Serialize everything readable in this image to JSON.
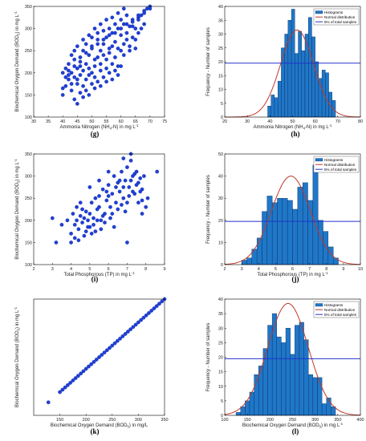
{
  "figure": {
    "colors": {
      "scatter": "#1f3fd6",
      "bar_fill": "#1f77c8",
      "bar_edge": "#0b2a5c",
      "normal_curve": "#c0392b",
      "threshold_line": "#2233cc"
    }
  },
  "chart_data": [
    {
      "id": "g",
      "type": "scatter",
      "caption": "(g)",
      "xlabel": "Ammonia Nitrogen (NH",
      "xlabel_sub": "4",
      "xlabel_post": "-N) in mg L",
      "xlabel_sup": "-1",
      "ylabel": "Biochemical Oxygen Demand (BOD",
      "ylabel_sub": "5",
      "ylabel_post": ") in mg L",
      "ylabel_sup": "-1",
      "xlim": [
        30,
        75
      ],
      "ylim": [
        100,
        350
      ],
      "xticks": [
        30,
        35,
        40,
        45,
        50,
        55,
        60,
        65,
        70,
        75
      ],
      "yticks": [
        100,
        150,
        200,
        250,
        300,
        350
      ],
      "points": [
        [
          40,
          165
        ],
        [
          41,
          190
        ],
        [
          42,
          205
        ],
        [
          43,
          175
        ],
        [
          44,
          230
        ],
        [
          45,
          210
        ],
        [
          46,
          195
        ],
        [
          47,
          250
        ],
        [
          48,
          220
        ],
        [
          49,
          240
        ],
        [
          50,
          260
        ],
        [
          51,
          230
        ],
        [
          52,
          275
        ],
        [
          53,
          250
        ],
        [
          54,
          265
        ],
        [
          55,
          280
        ],
        [
          56,
          255
        ],
        [
          57,
          290
        ],
        [
          58,
          270
        ],
        [
          59,
          300
        ],
        [
          60,
          285
        ],
        [
          61,
          310
        ],
        [
          62,
          290
        ],
        [
          63,
          305
        ],
        [
          64,
          320
        ],
        [
          65,
          300
        ],
        [
          66,
          325
        ],
        [
          67,
          330
        ],
        [
          68,
          340
        ],
        [
          69,
          345
        ],
        [
          70,
          350
        ],
        [
          40,
          150
        ],
        [
          41,
          170
        ],
        [
          42,
          185
        ],
        [
          43,
          200
        ],
        [
          44,
          190
        ],
        [
          45,
          175
        ],
        [
          46,
          215
        ],
        [
          47,
          205
        ],
        [
          48,
          185
        ],
        [
          49,
          210
        ],
        [
          50,
          200
        ],
        [
          51,
          215
        ],
        [
          52,
          235
        ],
        [
          53,
          220
        ],
        [
          54,
          240
        ],
        [
          55,
          230
        ],
        [
          56,
          245
        ],
        [
          57,
          260
        ],
        [
          58,
          235
        ],
        [
          59,
          255
        ],
        [
          60,
          250
        ],
        [
          61,
          265
        ],
        [
          62,
          275
        ],
        [
          63,
          260
        ],
        [
          64,
          280
        ],
        [
          65,
          275
        ],
        [
          66,
          290
        ],
        [
          67,
          300
        ],
        [
          68,
          310
        ],
        [
          42,
          220
        ],
        [
          44,
          250
        ],
        [
          46,
          235
        ],
        [
          48,
          265
        ],
        [
          50,
          280
        ],
        [
          52,
          290
        ],
        [
          54,
          295
        ],
        [
          56,
          300
        ],
        [
          58,
          310
        ],
        [
          60,
          320
        ],
        [
          62,
          330
        ],
        [
          64,
          305
        ],
        [
          66,
          320
        ],
        [
          43,
          160
        ],
        [
          45,
          185
        ],
        [
          47,
          170
        ],
        [
          49,
          195
        ],
        [
          51,
          190
        ],
        [
          53,
          205
        ],
        [
          55,
          210
        ],
        [
          57,
          220
        ],
        [
          59,
          215
        ],
        [
          61,
          240
        ],
        [
          63,
          250
        ],
        [
          65,
          255
        ],
        [
          44,
          140
        ],
        [
          46,
          155
        ],
        [
          48,
          160
        ],
        [
          50,
          175
        ],
        [
          52,
          180
        ],
        [
          54,
          190
        ],
        [
          56,
          200
        ],
        [
          58,
          205
        ],
        [
          60,
          215
        ],
        [
          45,
          130
        ],
        [
          47,
          145
        ],
        [
          49,
          150
        ],
        [
          51,
          165
        ],
        [
          53,
          170
        ],
        [
          55,
          180
        ],
        [
          57,
          185
        ],
        [
          59,
          195
        ],
        [
          41,
          210
        ],
        [
          43,
          240
        ],
        [
          45,
          260
        ],
        [
          47,
          275
        ],
        [
          49,
          285
        ],
        [
          51,
          300
        ],
        [
          53,
          310
        ],
        [
          55,
          320
        ],
        [
          57,
          325
        ],
        [
          59,
          335
        ],
        [
          61,
          345
        ],
        [
          40,
          200
        ],
        [
          42,
          195
        ],
        [
          44,
          215
        ],
        [
          46,
          225
        ],
        [
          48,
          245
        ],
        [
          50,
          255
        ],
        [
          52,
          265
        ],
        [
          54,
          275
        ],
        [
          56,
          285
        ],
        [
          58,
          290
        ],
        [
          60,
          300
        ],
        [
          62,
          310
        ],
        [
          64,
          315
        ],
        [
          66,
          330
        ],
        [
          68,
          335
        ],
        [
          70,
          345
        ]
      ]
    },
    {
      "id": "h",
      "type": "histogram",
      "caption": "(h)",
      "xlabel": "Ammonia Nitrogen (NH",
      "xlabel_sub": "4",
      "xlabel_post": "-N) in mg L",
      "xlabel_sup": "-1",
      "ylabel": "Frequency - Number of samples",
      "xlim": [
        20,
        80
      ],
      "ylim": [
        0,
        40
      ],
      "xticks": [
        20,
        30,
        40,
        50,
        60,
        70,
        80
      ],
      "yticks": [
        0,
        5,
        10,
        15,
        20,
        25,
        30,
        35,
        40
      ],
      "bin_edges": [
        39,
        40.5,
        42,
        43.5,
        45,
        46.5,
        48,
        49.5,
        51,
        52.5,
        54,
        55.5,
        57,
        58.5,
        60,
        61.5,
        63,
        64.5,
        66,
        67.5,
        69
      ],
      "counts": [
        4,
        8,
        7,
        13,
        25,
        30,
        35,
        39,
        23,
        31,
        24,
        30,
        36,
        29,
        20,
        14,
        17,
        16,
        9,
        6
      ],
      "normal": {
        "mean": 52,
        "sd": 7.3,
        "peak": 31.5
      },
      "threshold": 19.5,
      "legend": [
        "Histograms",
        "Normal distribution",
        "5% of total samples"
      ]
    },
    {
      "id": "i",
      "type": "scatter",
      "caption": "(i)",
      "xlabel": "Total Phosphorous (TP) in mg L",
      "xlabel_sup": "-1",
      "ylabel": "Biochemical Oxygen Demand (BOD",
      "ylabel_sub": "5",
      "ylabel_post": ") in mg L",
      "ylabel_sup": "-1",
      "xlim": [
        2,
        9
      ],
      "ylim": [
        100,
        350
      ],
      "xticks": [
        2,
        3,
        4,
        5,
        6,
        7,
        8,
        9
      ],
      "yticks": [
        100,
        150,
        200,
        250,
        300,
        350
      ],
      "points": [
        [
          3.0,
          205
        ],
        [
          3.2,
          150
        ],
        [
          3.8,
          200
        ],
        [
          4.0,
          170
        ],
        [
          4.1,
          215
        ],
        [
          4.2,
          190
        ],
        [
          4.3,
          230
        ],
        [
          4.4,
          180
        ],
        [
          4.5,
          210
        ],
        [
          4.6,
          195
        ],
        [
          4.7,
          165
        ],
        [
          4.8,
          220
        ],
        [
          4.9,
          200
        ],
        [
          5.0,
          185
        ],
        [
          5.1,
          240
        ],
        [
          5.2,
          205
        ],
        [
          5.3,
          175
        ],
        [
          5.4,
          225
        ],
        [
          5.5,
          255
        ],
        [
          5.6,
          200
        ],
        [
          5.7,
          270
        ],
        [
          5.8,
          215
        ],
        [
          5.9,
          245
        ],
        [
          6.0,
          280
        ],
        [
          6.1,
          230
        ],
        [
          6.2,
          260
        ],
        [
          6.3,
          300
        ],
        [
          6.4,
          240
        ],
        [
          6.5,
          285
        ],
        [
          6.6,
          265
        ],
        [
          6.7,
          310
        ],
        [
          6.8,
          250
        ],
        [
          6.9,
          290
        ],
        [
          7.0,
          320
        ],
        [
          7.1,
          275
        ],
        [
          7.2,
          335
        ],
        [
          7.3,
          300
        ],
        [
          7.4,
          260
        ],
        [
          7.5,
          280
        ],
        [
          7.6,
          240
        ],
        [
          7.7,
          295
        ],
        [
          7.8,
          270
        ],
        [
          7.9,
          300
        ],
        [
          8.0,
          230
        ],
        [
          8.1,
          250
        ],
        [
          8.6,
          310
        ],
        [
          4.2,
          160
        ],
        [
          4.5,
          240
        ],
        [
          4.8,
          175
        ],
        [
          5.0,
          215
        ],
        [
          5.2,
          190
        ],
        [
          5.5,
          230
        ],
        [
          5.8,
          195
        ],
        [
          6.0,
          255
        ],
        [
          6.2,
          215
        ],
        [
          6.5,
          225
        ],
        [
          6.8,
          275
        ],
        [
          7.0,
          240
        ],
        [
          7.2,
          290
        ],
        [
          7.5,
          310
        ],
        [
          7.8,
          245
        ],
        [
          4.3,
          200
        ],
        [
          4.6,
          225
        ],
        [
          4.9,
          185
        ],
        [
          5.3,
          250
        ],
        [
          5.6,
          180
        ],
        [
          5.9,
          265
        ],
        [
          6.1,
          205
        ],
        [
          6.4,
          275
        ],
        [
          6.7,
          235
        ],
        [
          7.1,
          255
        ],
        [
          7.4,
          305
        ],
        [
          7.7,
          265
        ],
        [
          4.4,
          155
        ],
        [
          4.7,
          205
        ],
        [
          5.1,
          170
        ],
        [
          5.4,
          200
        ],
        [
          5.7,
          210
        ],
        [
          6.3,
          185
        ],
        [
          6.6,
          290
        ],
        [
          6.9,
          220
        ],
        [
          7.3,
          265
        ],
        [
          7.6,
          285
        ],
        [
          3.5,
          190
        ],
        [
          4.0,
          150
        ],
        [
          7.0,
          150
        ],
        [
          7.8,
          215
        ],
        [
          5.0,
          275
        ],
        [
          5.5,
          290
        ],
        [
          6.0,
          310
        ],
        [
          6.8,
          340
        ],
        [
          7.2,
          350
        ]
      ]
    },
    {
      "id": "j",
      "type": "histogram",
      "caption": "(j)",
      "xlabel": "Total Phosphorous (TP) in mg L",
      "xlabel_sup": "-1",
      "ylabel": "Frequency - Number of samples",
      "xlim": [
        2,
        10
      ],
      "ylim": [
        0,
        50
      ],
      "xticks": [
        2,
        3,
        4,
        5,
        6,
        7,
        8,
        9,
        10
      ],
      "yticks": [
        0,
        10,
        20,
        30,
        40,
        50
      ],
      "bin_edges": [
        3.0,
        3.3,
        3.6,
        3.9,
        4.2,
        4.5,
        4.8,
        5.1,
        5.4,
        5.7,
        6.0,
        6.3,
        6.6,
        6.9,
        7.2,
        7.5,
        7.8,
        8.1,
        8.4,
        8.7
      ],
      "counts": [
        2,
        3,
        7,
        12,
        24,
        31,
        28,
        30,
        30,
        29,
        25,
        35,
        37,
        29,
        45,
        20,
        15,
        8,
        3
      ],
      "normal": {
        "mean": 5.9,
        "sd": 1.15,
        "peak": 40
      },
      "threshold": 19.5,
      "legend": [
        "Histograms",
        "Normal distribution",
        "5% of total samples"
      ]
    },
    {
      "id": "k",
      "type": "scatter",
      "caption": "(k)",
      "xlabel": "Biochemical Oxygen Demand (BOD",
      "xlabel_sub": "5",
      "xlabel_post": ") in mg/L",
      "ylabel": "Biochemical Oxygen Demand (BOD",
      "ylabel_sub": "5",
      "ylabel_post": ") in mg L",
      "ylabel_sup": "-1",
      "xlim": [
        100,
        350
      ],
      "ylim": [
        100,
        350
      ],
      "xticks": [
        150,
        200,
        250,
        300,
        350
      ],
      "yticks": [],
      "points": [
        [
          128,
          128
        ],
        [
          150,
          150
        ],
        [
          155,
          155
        ],
        [
          160,
          160
        ],
        [
          165,
          165
        ],
        [
          170,
          170
        ],
        [
          175,
          175
        ],
        [
          180,
          180
        ],
        [
          185,
          185
        ],
        [
          190,
          190
        ],
        [
          195,
          195
        ],
        [
          200,
          200
        ],
        [
          205,
          205
        ],
        [
          210,
          210
        ],
        [
          215,
          215
        ],
        [
          220,
          220
        ],
        [
          225,
          225
        ],
        [
          230,
          230
        ],
        [
          235,
          235
        ],
        [
          240,
          240
        ],
        [
          245,
          245
        ],
        [
          250,
          250
        ],
        [
          255,
          255
        ],
        [
          260,
          260
        ],
        [
          265,
          265
        ],
        [
          270,
          270
        ],
        [
          275,
          275
        ],
        [
          280,
          280
        ],
        [
          285,
          285
        ],
        [
          290,
          290
        ],
        [
          295,
          295
        ],
        [
          300,
          300
        ],
        [
          305,
          305
        ],
        [
          310,
          310
        ],
        [
          315,
          315
        ],
        [
          320,
          320
        ],
        [
          325,
          325
        ],
        [
          330,
          330
        ],
        [
          335,
          335
        ],
        [
          340,
          340
        ],
        [
          345,
          345
        ],
        [
          350,
          350
        ]
      ]
    },
    {
      "id": "l",
      "type": "histogram",
      "caption": "(l)",
      "xlabel": "Biochemical Oxygen Demand (BOD",
      "xlabel_sub": "5",
      "xlabel_post": ") in mg L",
      "xlabel_sup": "-1",
      "ylabel": "Frequency - Number of samples",
      "xlim": [
        100,
        400
      ],
      "ylim": [
        0,
        40
      ],
      "xticks": [
        100,
        150,
        200,
        250,
        300,
        350,
        400
      ],
      "yticks": [
        0,
        5,
        10,
        15,
        20,
        25,
        30,
        35,
        40
      ],
      "bin_edges": [
        125,
        135,
        145,
        155,
        165,
        175,
        185,
        195,
        205,
        215,
        225,
        235,
        245,
        255,
        265,
        275,
        285,
        295,
        305,
        315,
        325,
        335,
        345
      ],
      "counts": [
        1,
        3,
        5,
        8,
        14,
        17,
        23,
        31,
        35,
        27,
        25,
        30,
        21,
        31,
        32,
        26,
        14,
        13,
        13,
        4,
        6,
        3
      ],
      "normal": {
        "mean": 240,
        "sd": 45,
        "peak": 38.5
      },
      "threshold": 19.5,
      "legend": [
        "Histograms",
        "Normal distribution",
        "5% of total samples"
      ]
    }
  ]
}
